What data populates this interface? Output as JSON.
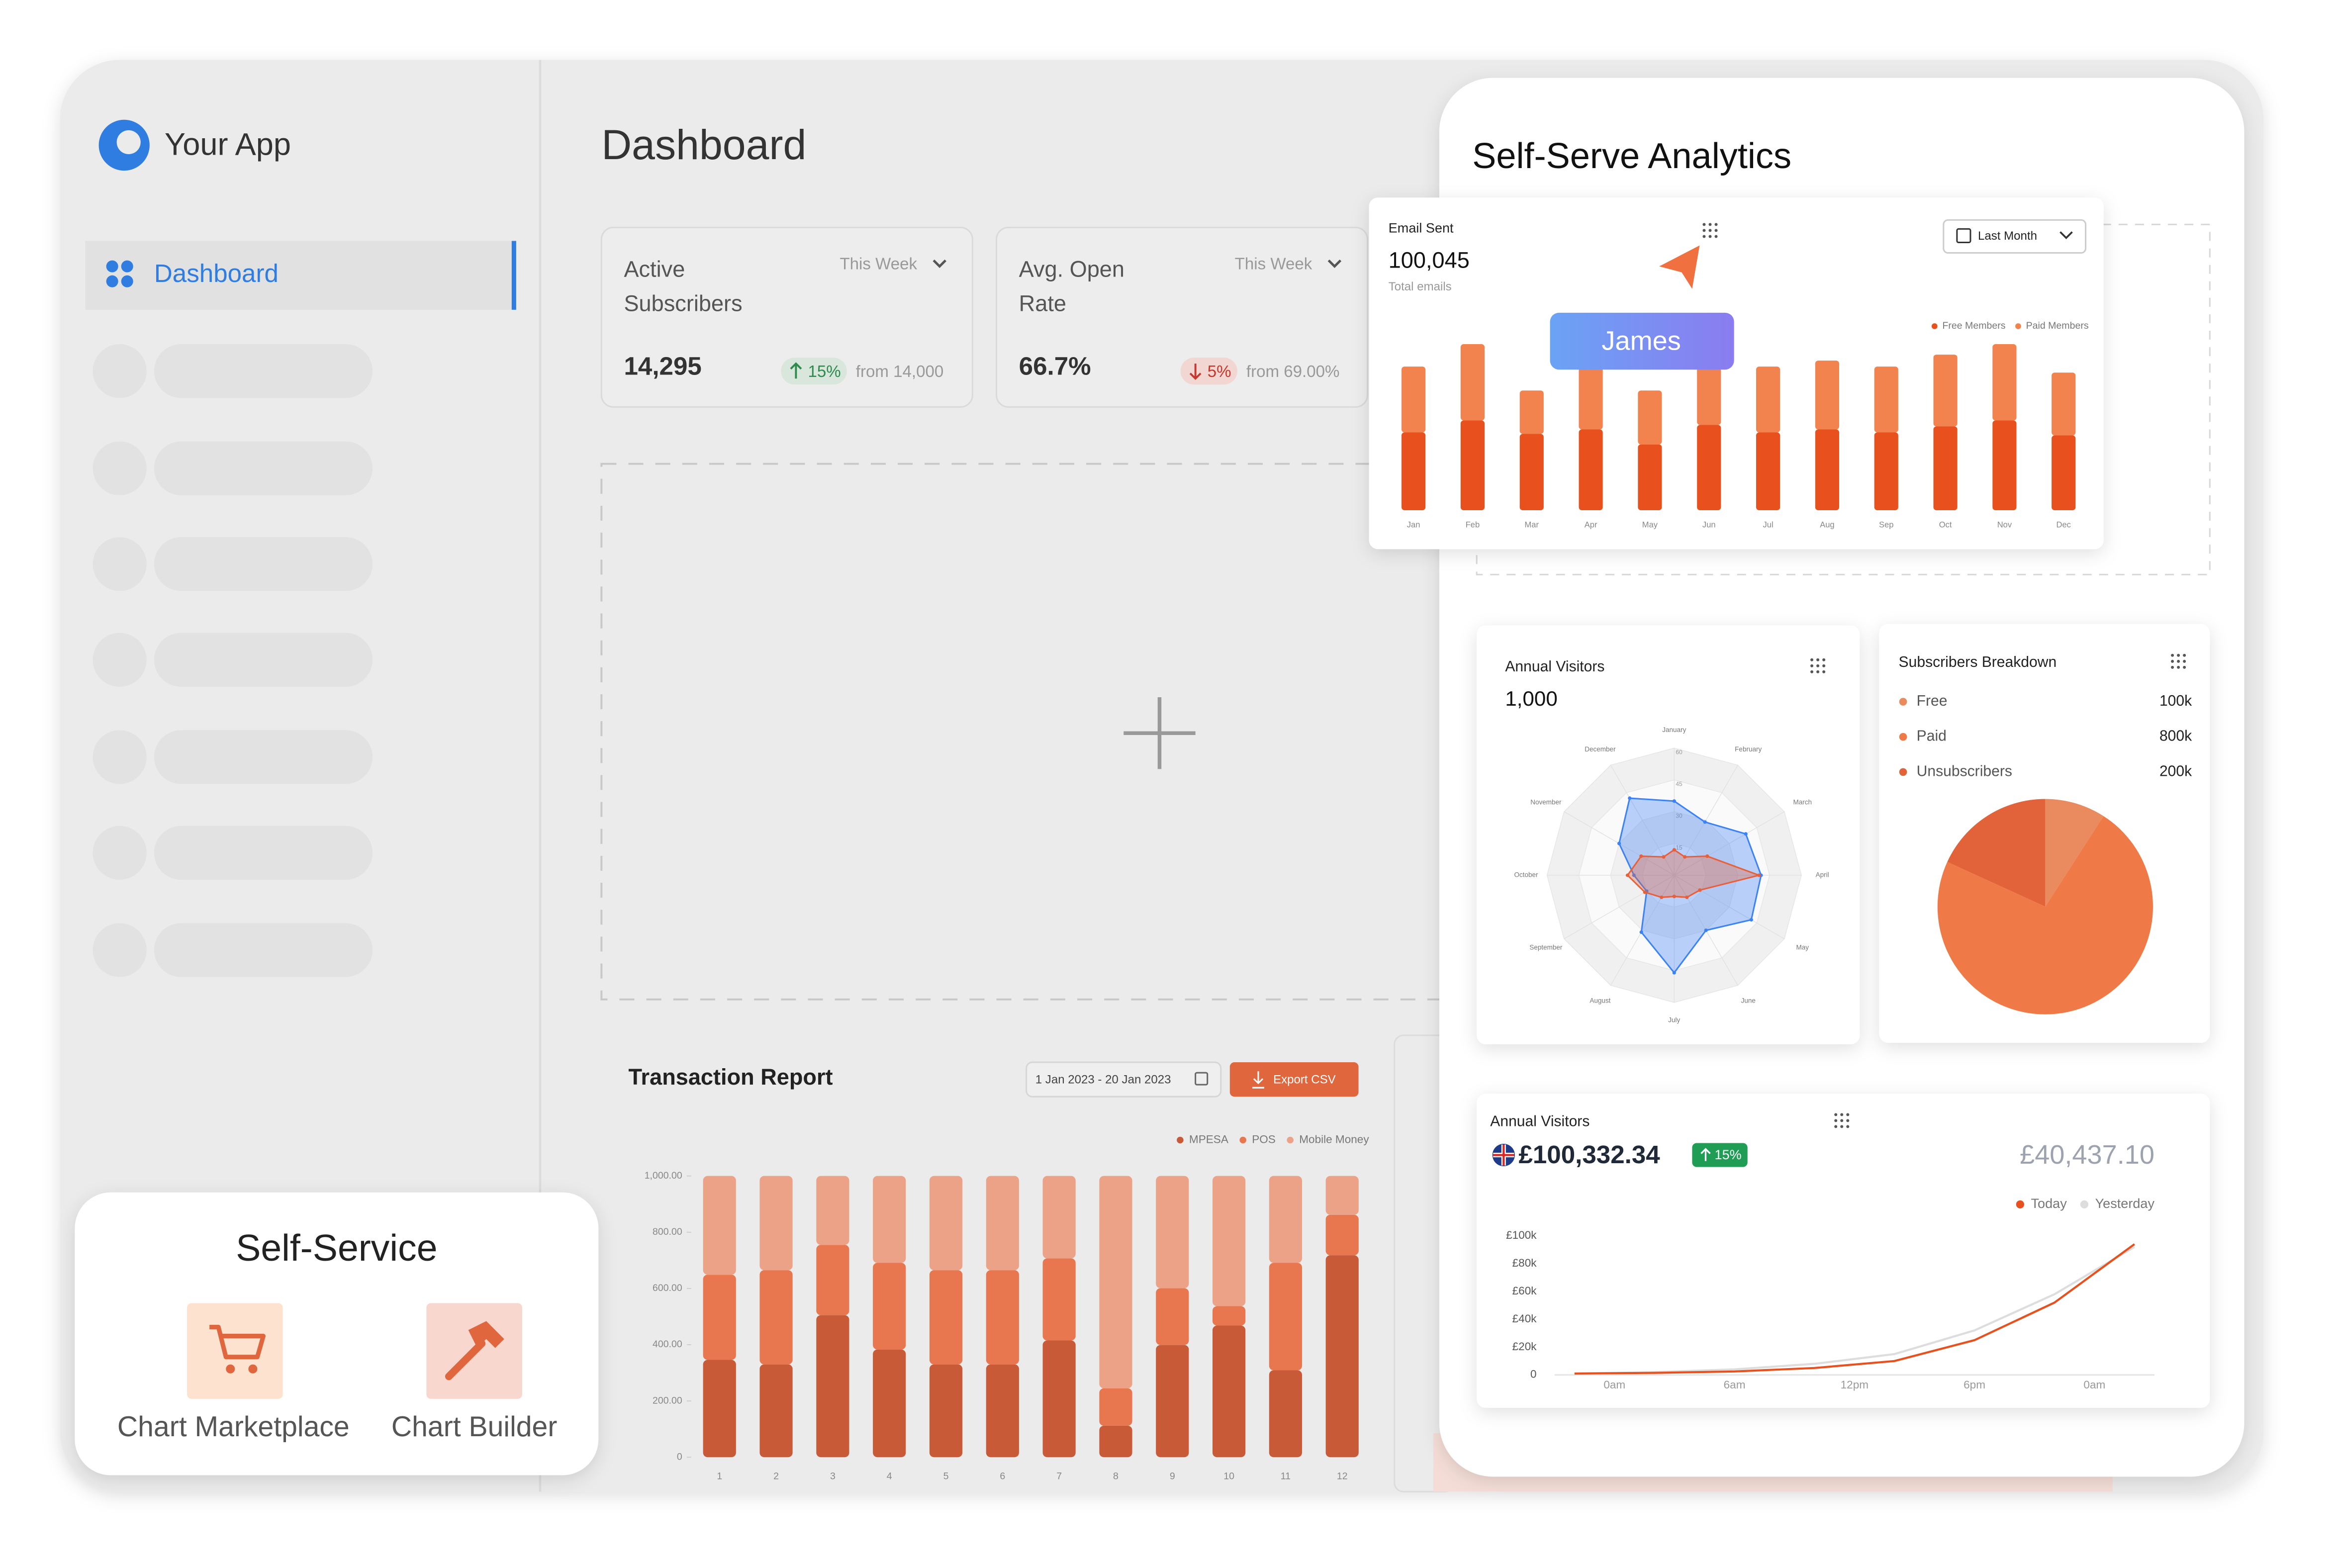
{
  "sidebar": {
    "app_name": "Your App",
    "nav": [
      "Dashboard"
    ]
  },
  "header": {
    "title": "Dashboard"
  },
  "stats": [
    {
      "label_lines": [
        "Active",
        "Subscribers"
      ],
      "period": "This Week",
      "value": "14,295",
      "change": "15%",
      "direction": "up",
      "comparison": "from 14,000"
    },
    {
      "label_lines": [
        "Avg. Open",
        "Rate"
      ],
      "period": "This Week",
      "value": "66.7%",
      "change": "5%",
      "direction": "down",
      "comparison": "from 69.00%"
    }
  ],
  "transaction_report": {
    "title": "Transaction Report",
    "date_range": "1 Jan 2023 - 20 Jan 2023",
    "button": "Export CSV",
    "chart_data": {
      "type": "stacked_bar",
      "categories": [
        "1",
        "2",
        "3",
        "4",
        "5",
        "6",
        "7",
        "8",
        "9",
        "10",
        "11",
        "12"
      ],
      "ylim": [
        0,
        1000
      ],
      "yticks": [
        0,
        {
          "value": 200,
          "label": "200.00"
        },
        {
          "value": 400,
          "label": "400.00"
        },
        {
          "value": 600,
          "label": "600.00"
        },
        {
          "value": 800,
          "label": "800.00"
        },
        {
          "value": 1000,
          "label": "1,000.00"
        }
      ],
      "grid": false,
      "series": [
        {
          "name": "MPESA",
          "color": "#c95a38",
          "values": [
            346,
            330,
            505,
            383,
            330,
            330,
            415,
            112,
            399,
            468,
            309,
            718
          ]
        },
        {
          "name": "POS",
          "color": "#e8774f",
          "values": [
            303,
            335,
            250,
            308,
            335,
            335,
            292,
            133,
            202,
            69,
            382,
            144
          ]
        },
        {
          "name": "Mobile Money",
          "color": "#eca286",
          "values": [
            351,
            335,
            245,
            309,
            335,
            335,
            293,
            755,
            399,
            463,
            309,
            138
          ]
        }
      ]
    }
  },
  "self_service": {
    "title": "Self-Service",
    "items": [
      "Chart Marketplace",
      "Chart Builder"
    ]
  },
  "analytics": {
    "title": "Self-Serve Analytics",
    "email": {
      "title": "Email Sent",
      "total": "100,045",
      "total_label": "Total emails",
      "filter": "Last Month",
      "chart_data": {
        "type": "stacked_bar",
        "categories": [
          "Jan",
          "Feb",
          "Mar",
          "Apr",
          "May",
          "Jun",
          "Jul",
          "Aug",
          "Sep",
          "Oct",
          "Nov",
          "Dec"
        ],
        "ylim": [
          0,
          120
        ],
        "grid": false,
        "series": [
          {
            "name": "Free Members",
            "color": "#e8501e",
            "values": [
              52,
              60,
              51,
              54,
              44,
              57,
              52,
              54,
              52,
              56,
              60,
              50
            ]
          },
          {
            "name": "Paid Members",
            "color": "#f2834f",
            "values": [
              44,
              51,
              29,
              42,
              36,
              39,
              44,
              46,
              44,
              48,
              51,
              42
            ]
          }
        ]
      }
    },
    "cursor_label": "James",
    "visitors_radar": {
      "title": "Annual Visitors",
      "total": "1,000",
      "chart_data": {
        "type": "radar",
        "categories": [
          "January",
          "February",
          "March",
          "April",
          "May",
          "June",
          "July",
          "August",
          "September",
          "October",
          "November",
          "December"
        ],
        "rlim": [
          0,
          60
        ],
        "rticks": [
          15,
          30,
          45,
          60
        ],
        "series": [
          {
            "color": "#3b82f6",
            "values": [
              35,
              29,
              39,
              41,
              42,
              30,
              46,
              31,
              15,
              19,
              30,
              42
            ]
          },
          {
            "color": "#e8603a",
            "values": [
              12,
              10,
              18,
              40,
              14,
              12,
              10,
              12,
              16,
              22,
              18,
              10
            ]
          }
        ]
      }
    },
    "subscribers": {
      "title": "Subscribers Breakdown",
      "chart_data": {
        "type": "pie",
        "categories": [
          "Free",
          "Paid",
          "Unsubscribers"
        ],
        "values": [
          100000,
          800000,
          200000
        ],
        "value_labels": [
          "100k",
          "800k",
          "200k"
        ],
        "colors": [
          "#ea8a5f",
          "#f07a47",
          "#e2623a"
        ]
      }
    },
    "visitors_line": {
      "title": "Annual Visitors",
      "amount": "£100,332.34",
      "change": "15%",
      "comparison": "£40,437.10",
      "chart_data": {
        "type": "line",
        "x": [
          -2,
          2,
          6,
          10,
          14,
          18,
          22,
          26
        ],
        "xlim": [
          -3,
          27
        ],
        "xticks": [
          {
            "value": 0,
            "label": "0am"
          },
          {
            "value": 6,
            "label": "6am"
          },
          {
            "value": 12,
            "label": "12pm"
          },
          {
            "value": 18,
            "label": "6pm"
          },
          {
            "value": 24,
            "label": "0am"
          }
        ],
        "ylim": [
          0,
          100000
        ],
        "yticks": [
          0,
          {
            "value": 20000,
            "label": "£20k"
          },
          {
            "value": 40000,
            "label": "£40k"
          },
          {
            "value": 60000,
            "label": "£60k"
          },
          {
            "value": 80000,
            "label": "£80k"
          },
          {
            "value": 100000,
            "label": "£100k"
          }
        ],
        "series": [
          {
            "name": "Today",
            "color": "#e8501e",
            "values": [
              1000,
              1500,
              2500,
              5000,
              10000,
              25000,
              52000,
              94000
            ]
          },
          {
            "name": "Yesterday",
            "color": "#dddddd",
            "values": [
              1000,
              2000,
              4000,
              8000,
              15000,
              32000,
              58000,
              92000
            ]
          }
        ]
      }
    }
  }
}
